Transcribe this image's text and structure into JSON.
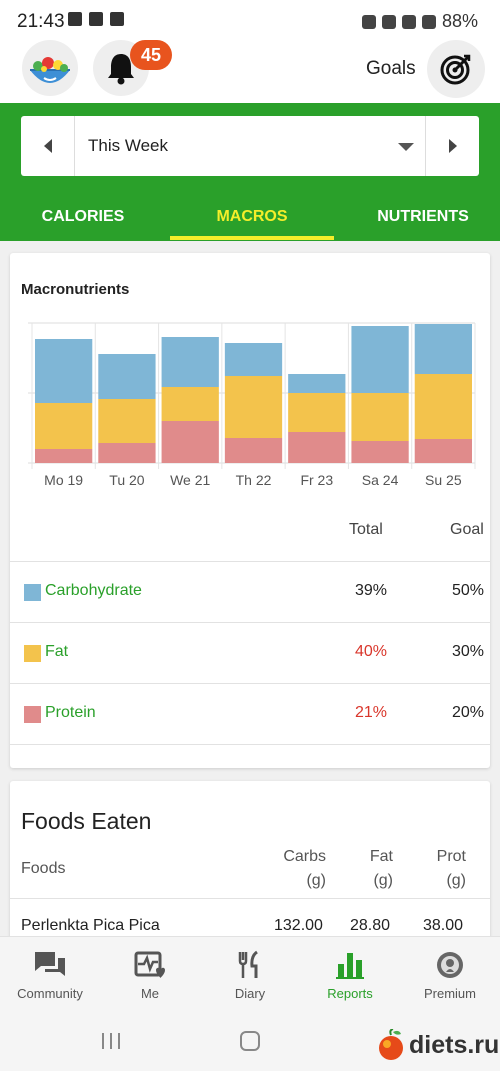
{
  "status_bar": {
    "time": "21:43",
    "battery": "88%"
  },
  "header": {
    "notification_count": "45",
    "goals_label": "Goals"
  },
  "week_selector": {
    "label": "This Week"
  },
  "tabs": [
    {
      "label": "CALORIES",
      "active": false
    },
    {
      "label": "MACROS",
      "active": true
    },
    {
      "label": "NUTRIENTS",
      "active": false
    }
  ],
  "macros": {
    "title": "Macronutrients",
    "col_total": "Total",
    "col_goal": "Goal",
    "rows": [
      {
        "name": "Carbohydrate",
        "total": "39%",
        "goal": "50%",
        "color": "#7fb6d6",
        "over": false
      },
      {
        "name": "Fat",
        "total": "40%",
        "goal": "30%",
        "color": "#f3c34c",
        "over": true
      },
      {
        "name": "Protein",
        "total": "21%",
        "goal": "20%",
        "color": "#e08b8b",
        "over": true
      }
    ]
  },
  "chart_data": {
    "type": "bar",
    "stacked": true,
    "categories": [
      "Mo 19",
      "Tu 20",
      "We 21",
      "Th 22",
      "Fr 23",
      "Sa 24",
      "Su 25"
    ],
    "series": [
      {
        "name": "Protein",
        "color": "#e08b8b",
        "values": [
          14,
          20,
          42,
          25,
          31,
          22,
          24
        ]
      },
      {
        "name": "Fat",
        "color": "#f3c34c",
        "values": [
          46,
          44,
          34,
          62,
          39,
          48,
          65
        ]
      },
      {
        "name": "Carbohydrate",
        "color": "#7fb6d6",
        "values": [
          64,
          45,
          50,
          33,
          19,
          67,
          50
        ]
      }
    ],
    "ylim": [
      0,
      140
    ],
    "grid": true
  },
  "foods_eaten": {
    "title": "Foods Eaten",
    "col_foods": "Foods",
    "col_carbs": "Carbs",
    "col_fat": "Fat",
    "col_prot": "Prot",
    "unit": "(g)",
    "rows": [
      {
        "name": "Perlenkta Pica Pica",
        "carbs": "132.00",
        "fat": "28.80",
        "prot": "38.00"
      }
    ]
  },
  "bottom_nav": [
    {
      "label": "Community",
      "icon": "chat-icon",
      "active": false
    },
    {
      "label": "Me",
      "icon": "heart-pulse-icon",
      "active": false
    },
    {
      "label": "Diary",
      "icon": "fork-knife-icon",
      "active": false
    },
    {
      "label": "Reports",
      "icon": "bar-chart-icon",
      "active": true
    },
    {
      "label": "Premium",
      "icon": "premium-badge-icon",
      "active": false
    }
  ],
  "watermark": {
    "text": "diets.ru"
  }
}
